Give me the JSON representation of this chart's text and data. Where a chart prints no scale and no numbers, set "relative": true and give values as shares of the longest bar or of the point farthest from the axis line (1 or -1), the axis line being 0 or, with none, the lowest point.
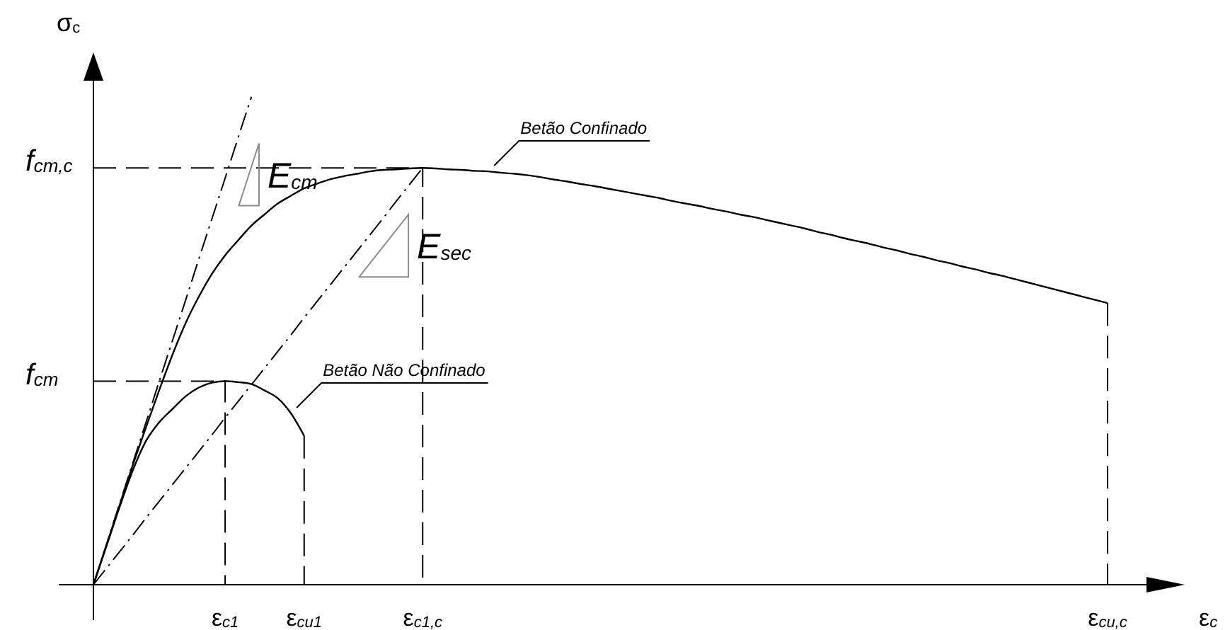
{
  "chart_data": {
    "type": "line",
    "relative": true,
    "xlabel": "ε$_{c}$",
    "ylabel": "σ$_{c}$",
    "categories": [
      null,
      null,
      null,
      null,
      null,
      null,
      null,
      null,
      null,
      null,
      "ε$_{c1}$",
      null,
      null,
      null,
      null,
      null,
      "ε$_{cu1}$",
      null,
      null,
      null,
      null,
      null,
      null,
      null,
      null,
      "ε$_{c1,c}$",
      null,
      null,
      null,
      null,
      null,
      null,
      null,
      null,
      null,
      null,
      null,
      null,
      null,
      null,
      null,
      null,
      null,
      null,
      null,
      null,
      null,
      null,
      null,
      null,
      null,
      null,
      null,
      null,
      null,
      null,
      null,
      null,
      null,
      null,
      null,
      null,
      null,
      null,
      null,
      null,
      null,
      null,
      null,
      null,
      null,
      null,
      null,
      null,
      null,
      null,
      null,
      "ε$_{cu,c}$",
      null
    ],
    "series": [
      {
        "name": "Betão Confinado",
        "color": "#000000",
        "line_style": "solid",
        "values": [
          0,
          0.082,
          0.164,
          0.246,
          0.323,
          0.399,
          0.471,
          0.536,
          0.59,
          0.637,
          0.675,
          0.706,
          0.736,
          0.759,
          0.781,
          0.797,
          0.812,
          0.822,
          0.831,
          0.837,
          0.842,
          0.847,
          0.85,
          0.851,
          0.853,
          0.854,
          0.853,
          0.851,
          0.85,
          0.848,
          0.847,
          0.844,
          0.842,
          0.839,
          0.835,
          0.83,
          0.826,
          0.821,
          0.817,
          0.812,
          0.807,
          0.802,
          0.797,
          0.792,
          0.786,
          0.781,
          0.776,
          0.77,
          0.765,
          0.759,
          0.754,
          0.748,
          0.742,
          0.736,
          0.73,
          0.723,
          0.717,
          0.71,
          0.704,
          0.698,
          0.691,
          0.685,
          0.678,
          0.672,
          0.665,
          0.659,
          0.652,
          0.646,
          0.639,
          0.633,
          0.626,
          0.619,
          0.612,
          0.605,
          0.598,
          0.591,
          0.584,
          0.577,
          null
        ]
      },
      {
        "name": "Betão Não Confinado",
        "color": "#000000",
        "line_style": "solid",
        "values": [
          0,
          0.08,
          0.16,
          0.235,
          0.295,
          0.333,
          0.36,
          0.386,
          0.404,
          0.414,
          0.417,
          0.415,
          0.411,
          0.398,
          0.382,
          0.351,
          0.305,
          null,
          null,
          null,
          null,
          null,
          null,
          null,
          null,
          null,
          null,
          null,
          null,
          null,
          null,
          null,
          null,
          null,
          null,
          null,
          null,
          null,
          null,
          null,
          null,
          null,
          null,
          null,
          null,
          null,
          null,
          null,
          null,
          null,
          null,
          null,
          null,
          null,
          null,
          null,
          null,
          null,
          null,
          null,
          null,
          null,
          null,
          null,
          null,
          null,
          null,
          null,
          null,
          null,
          null,
          null,
          null,
          null,
          null,
          null,
          null,
          null,
          null
        ]
      },
      {
        "color": "#000000",
        "line_style": "dashdot",
        "values": [
          0,
          0.083,
          0.167,
          0.25,
          0.333,
          0.417,
          0.5,
          0.583,
          0.667,
          0.75,
          0.833,
          0.917,
          1,
          null,
          null,
          null,
          null,
          null,
          null,
          null,
          null,
          null,
          null,
          null,
          null,
          null,
          null,
          null,
          null,
          null,
          null,
          null,
          null,
          null,
          null,
          null,
          null,
          null,
          null,
          null,
          null,
          null,
          null,
          null,
          null,
          null,
          null,
          null,
          null,
          null,
          null,
          null,
          null,
          null,
          null,
          null,
          null,
          null,
          null,
          null,
          null,
          null,
          null,
          null,
          null,
          null,
          null,
          null,
          null,
          null,
          null,
          null,
          null,
          null,
          null,
          null,
          null,
          null,
          null
        ]
      },
      {
        "color": "#000000",
        "line_style": "dashdot",
        "values": [
          0,
          0.034,
          0.068,
          0.102,
          0.137,
          0.171,
          0.205,
          0.239,
          0.273,
          0.307,
          0.342,
          0.376,
          0.41,
          0.444,
          0.478,
          0.512,
          0.547,
          0.581,
          0.615,
          0.649,
          0.683,
          0.717,
          0.751,
          0.786,
          0.82,
          0.854,
          null,
          null,
          null,
          null,
          null,
          null,
          null,
          null,
          null,
          null,
          null,
          null,
          null,
          null,
          null,
          null,
          null,
          null,
          null,
          null,
          null,
          null,
          null,
          null,
          null,
          null,
          null,
          null,
          null,
          null,
          null,
          null,
          null,
          null,
          null,
          null,
          null,
          null,
          null,
          null,
          null,
          null,
          null,
          null,
          null,
          null,
          null,
          null,
          null,
          null,
          null,
          null,
          null
        ]
      },
      {
        "name": "f$_{cm,c}$",
        "type": "step",
        "color": "#000000",
        "line_style": "dashed",
        "values": [
          0.854,
          0.854,
          0.854,
          0.854,
          0.854,
          0.854,
          0.854,
          0.854,
          0.854,
          0.854,
          0.854,
          0.854,
          0.854,
          0.854,
          0.854,
          0.854,
          0.854,
          0.854,
          0.854,
          0.854,
          0.854,
          0.854,
          0.854,
          0.854,
          0.854,
          0.854,
          0,
          null,
          null,
          null,
          null,
          null,
          null,
          null,
          null,
          null,
          null,
          null,
          null,
          null,
          null,
          null,
          null,
          null,
          null,
          null,
          null,
          null,
          null,
          null,
          null,
          null,
          null,
          null,
          null,
          null,
          null,
          null,
          null,
          null,
          null,
          null,
          null,
          null,
          null,
          null,
          null,
          null,
          null,
          null,
          null,
          null,
          null,
          null,
          null,
          null,
          null,
          null,
          null
        ]
      },
      {
        "name": "f$_{cm}$",
        "type": "step",
        "color": "#000000",
        "line_style": "dashed",
        "values": [
          0.417,
          0.417,
          0.417,
          0.417,
          0.417,
          0.417,
          0.417,
          0.417,
          0.417,
          0.417,
          0.417,
          0,
          null,
          null,
          null,
          null,
          null,
          null,
          null,
          null,
          null,
          null,
          null,
          null,
          null,
          null,
          null,
          null,
          null,
          null,
          null,
          null,
          null,
          null,
          null,
          null,
          null,
          null,
          null,
          null,
          null,
          null,
          null,
          null,
          null,
          null,
          null,
          null,
          null,
          null,
          null,
          null,
          null,
          null,
          null,
          null,
          null,
          null,
          null,
          null,
          null,
          null,
          null,
          null,
          null,
          null,
          null,
          null,
          null,
          null,
          null,
          null,
          null,
          null,
          null,
          null,
          null,
          null,
          null
        ]
      },
      {
        "type": "step",
        "color": "#000000",
        "line_style": "dashed",
        "values": [
          null,
          null,
          null,
          null,
          null,
          null,
          null,
          null,
          null,
          null,
          null,
          null,
          null,
          null,
          null,
          null,
          0.305,
          0,
          null,
          null,
          null,
          null,
          null,
          null,
          null,
          null,
          null,
          null,
          null,
          null,
          null,
          null,
          null,
          null,
          null,
          null,
          null,
          null,
          null,
          null,
          null,
          null,
          null,
          null,
          null,
          null,
          null,
          null,
          null,
          null,
          null,
          null,
          null,
          null,
          null,
          null,
          null,
          null,
          null,
          null,
          null,
          null,
          null,
          null,
          null,
          null,
          null,
          null,
          null,
          null,
          null,
          null,
          null,
          null,
          null,
          null,
          null,
          null,
          null
        ]
      },
      {
        "type": "step",
        "color": "#000000",
        "line_style": "dashed",
        "values": [
          null,
          null,
          null,
          null,
          null,
          null,
          null,
          null,
          null,
          null,
          null,
          null,
          null,
          null,
          null,
          null,
          null,
          null,
          null,
          null,
          null,
          null,
          null,
          null,
          null,
          null,
          null,
          null,
          null,
          null,
          null,
          null,
          null,
          null,
          null,
          null,
          null,
          null,
          null,
          null,
          null,
          null,
          null,
          null,
          null,
          null,
          null,
          null,
          null,
          null,
          null,
          null,
          null,
          null,
          null,
          null,
          null,
          null,
          null,
          null,
          null,
          null,
          null,
          null,
          null,
          null,
          null,
          null,
          null,
          null,
          null,
          null,
          null,
          null,
          null,
          null,
          null,
          0.577,
          0
        ]
      }
    ],
    "annotations": [
      "E$_{cm}$",
      "E$_{sec}$"
    ]
  }
}
